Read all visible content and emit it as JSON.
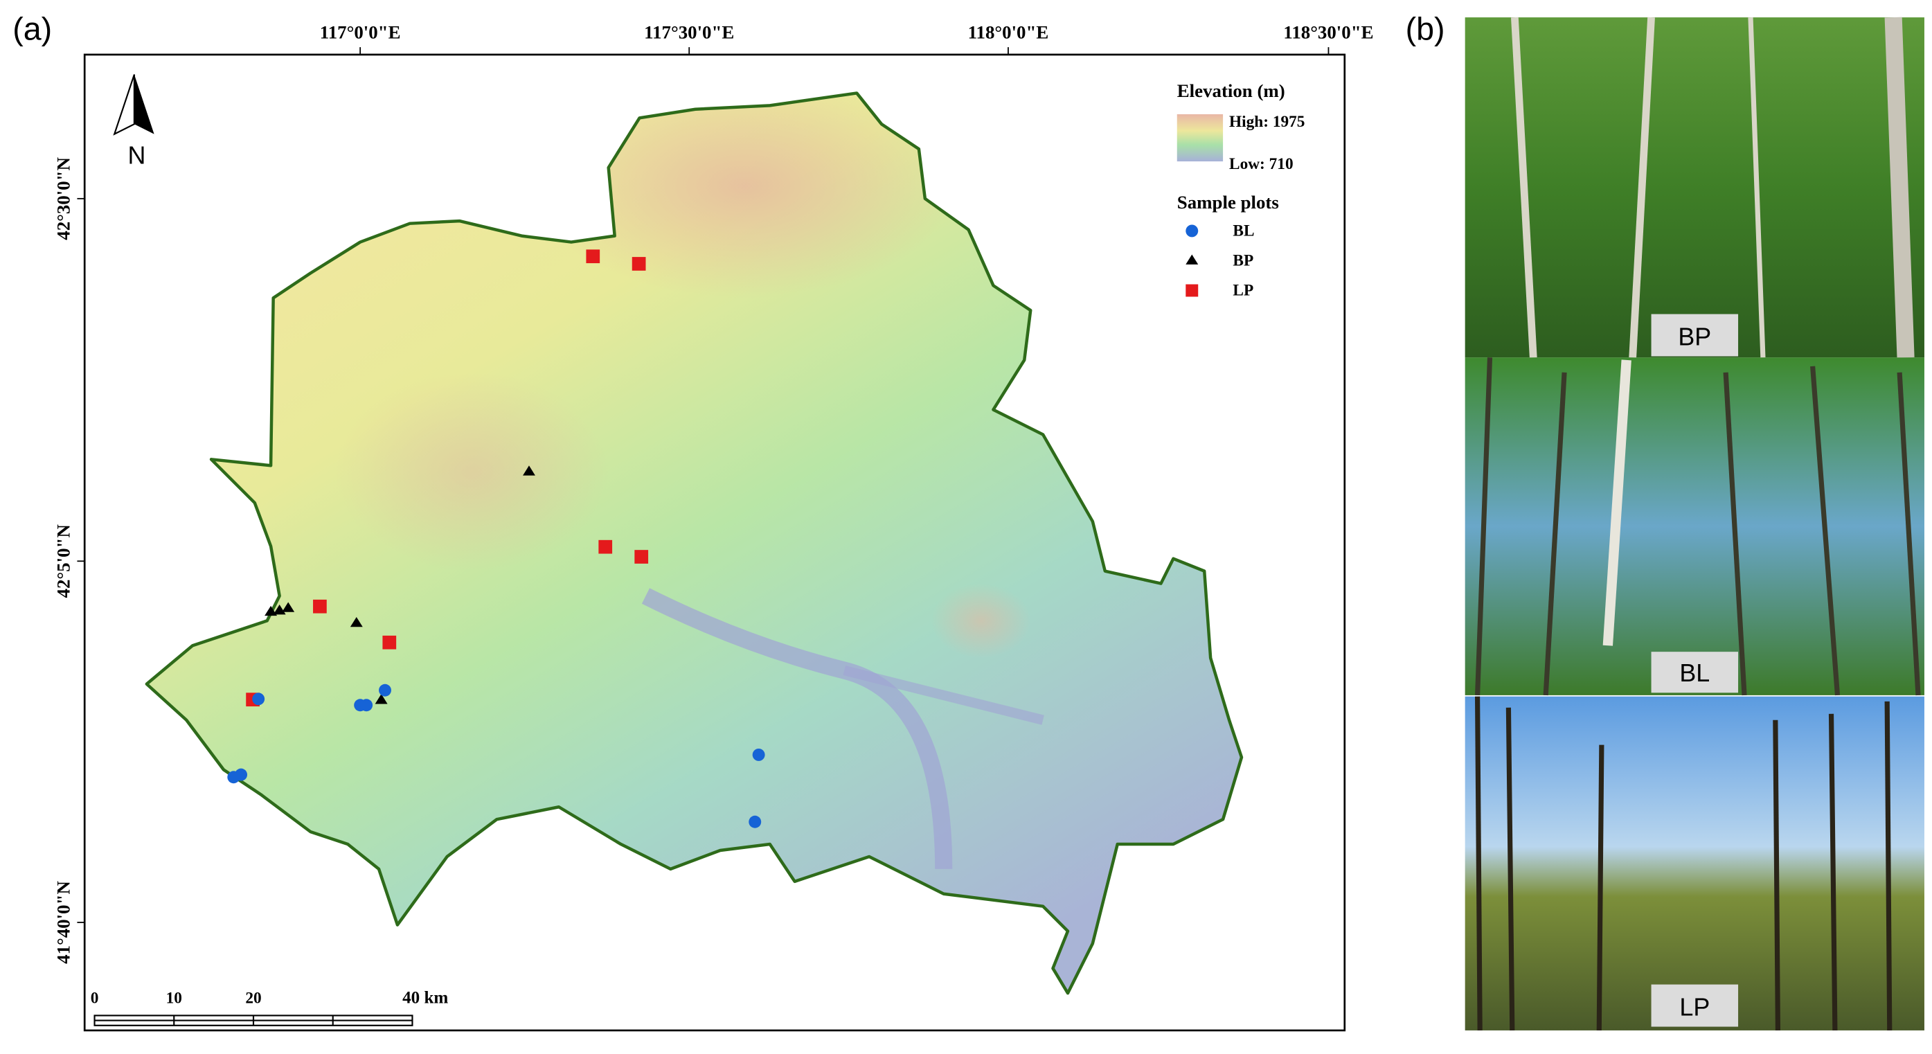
{
  "panel_a": {
    "label": "(a)",
    "longitude_labels": [
      "117°0'0\"E",
      "117°30'0\"E",
      "118°0'0\"E",
      "118°30'0\"E"
    ],
    "latitude_labels": [
      "42°30'0\"N",
      "42°5'0\"N",
      "41°40'0\"N"
    ],
    "north": "N",
    "legend": {
      "elevation_title": "Elevation (m)",
      "high": "High: 1975",
      "low": "Low: 710",
      "plots_title": "Sample plots",
      "items": [
        "BL",
        "BP",
        "LP"
      ]
    },
    "scale_bar": [
      "0",
      "10",
      "20",
      "40 km"
    ]
  },
  "panel_b": {
    "label": "(b)",
    "photos": [
      "BP",
      "BL",
      "LP"
    ]
  }
}
